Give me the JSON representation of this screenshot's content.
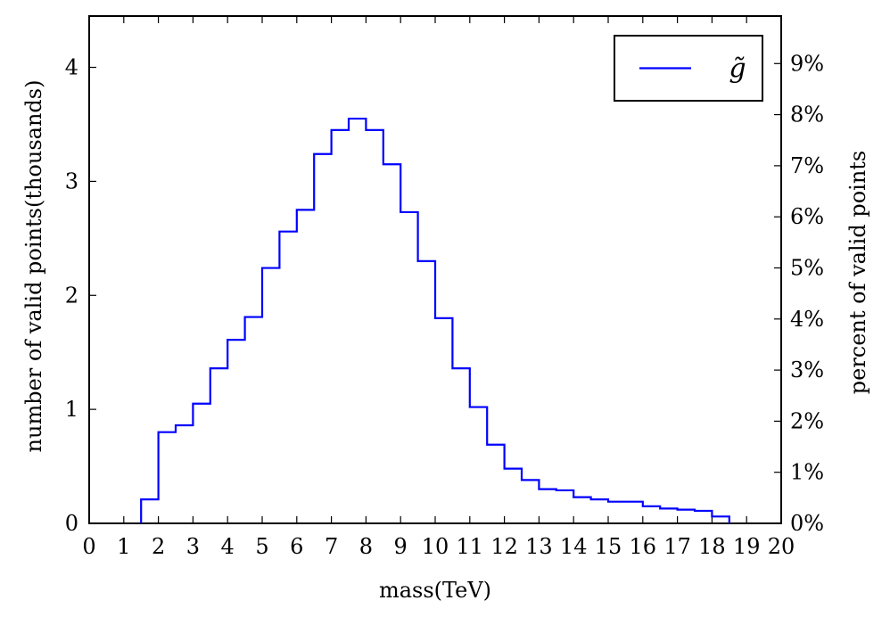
{
  "chart_data": {
    "type": "histogram",
    "xlabel": "mass(TeV)",
    "ylabel": "number of valid points(thousands)",
    "y2label": "percent of valid points",
    "xlim": [
      0,
      20
    ],
    "ylim": [
      0,
      4.45
    ],
    "y2lim_percent": [
      0,
      9.93
    ],
    "x_ticks": [
      "0",
      "1",
      "2",
      "3",
      "4",
      "5",
      "6",
      "7",
      "8",
      "9",
      "10",
      "11",
      "12",
      "13",
      "14",
      "15",
      "16",
      "17",
      "18",
      "19",
      "20"
    ],
    "y_ticks": [
      "0",
      "1",
      "2",
      "3",
      "4"
    ],
    "y2_ticks": [
      "0%",
      "1%",
      "2%",
      "3%",
      "4%",
      "5%",
      "6%",
      "7%",
      "8%",
      "9%"
    ],
    "legend": {
      "position": "top-right",
      "entries": [
        "g̃"
      ]
    },
    "grid": false,
    "series": [
      {
        "name": "g̃",
        "color": "#0000ff",
        "bin_edges": [
          1.5,
          2.0,
          2.5,
          3.0,
          3.5,
          4.0,
          4.5,
          5.0,
          5.5,
          6.0,
          6.5,
          7.0,
          7.5,
          8.0,
          8.5,
          9.0,
          9.5,
          10.0,
          10.5,
          11.0,
          11.5,
          12.0,
          12.5,
          13.0,
          13.5,
          14.0,
          14.5,
          15.0,
          15.5,
          16.0,
          16.5,
          17.0,
          17.5,
          18.0,
          18.5
        ],
        "values": [
          0.21,
          0.8,
          0.86,
          1.05,
          1.36,
          1.61,
          1.81,
          2.24,
          2.56,
          2.75,
          3.24,
          3.45,
          3.55,
          3.45,
          3.15,
          2.73,
          2.3,
          1.8,
          1.36,
          1.02,
          0.69,
          0.48,
          0.38,
          0.3,
          0.29,
          0.23,
          0.21,
          0.19,
          0.19,
          0.15,
          0.13,
          0.12,
          0.11,
          0.06
        ]
      }
    ]
  }
}
